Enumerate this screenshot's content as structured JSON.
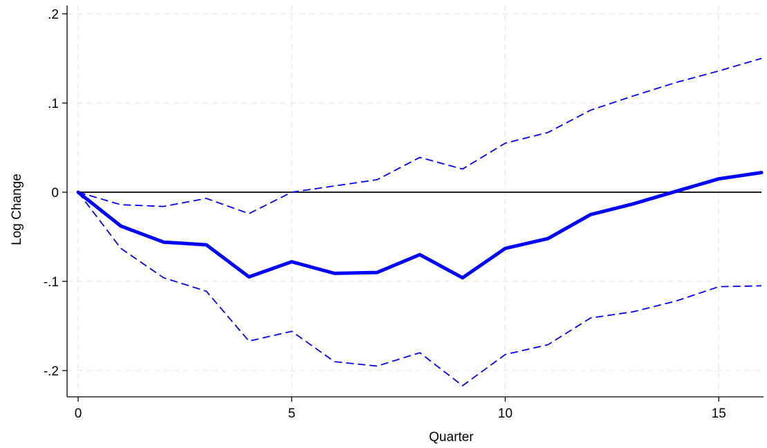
{
  "chart_data": {
    "type": "line",
    "title": "",
    "xlabel": "Quarter",
    "ylabel": "Log Change",
    "xlim": [
      0,
      16
    ],
    "ylim": [
      -0.22,
      0.2
    ],
    "x_ticks": [
      0,
      5,
      10,
      15
    ],
    "x_tick_labels": [
      "0",
      "5",
      "10",
      "15"
    ],
    "y_ticks": [
      -0.2,
      -0.1,
      0,
      0.1,
      0.2
    ],
    "y_tick_labels": [
      "-.2",
      "-.1",
      "0",
      ".1",
      ".2"
    ],
    "grid": true,
    "reference_line": {
      "y": 0,
      "color": "#000000"
    },
    "x": [
      0,
      1,
      2,
      3,
      4,
      5,
      6,
      7,
      8,
      9,
      10,
      11,
      12,
      13,
      14,
      15,
      16
    ],
    "series": [
      {
        "role": "estimate",
        "style": "solid",
        "color": "#0000ff",
        "values": [
          0,
          -0.038,
          -0.056,
          -0.059,
          -0.095,
          -0.078,
          -0.091,
          -0.09,
          -0.07,
          -0.096,
          -0.063,
          -0.052,
          -0.025,
          -0.013,
          0.001,
          0.015,
          0.022
        ]
      },
      {
        "role": "upper",
        "style": "dashed",
        "color": "#0000ff",
        "values": [
          0,
          -0.014,
          -0.016,
          -0.007,
          -0.024,
          0.0,
          0.007,
          0.014,
          0.039,
          0.026,
          0.055,
          0.067,
          0.092,
          0.108,
          0.123,
          0.136,
          0.15
        ]
      },
      {
        "role": "lower",
        "style": "dashed",
        "color": "#0000ff",
        "values": [
          0,
          -0.063,
          -0.096,
          -0.111,
          -0.167,
          -0.156,
          -0.19,
          -0.195,
          -0.18,
          -0.217,
          -0.182,
          -0.171,
          -0.141,
          -0.134,
          -0.122,
          -0.106,
          -0.105
        ]
      }
    ]
  }
}
